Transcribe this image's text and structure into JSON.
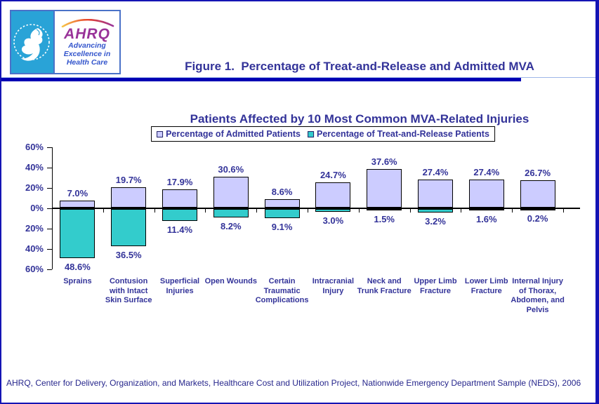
{
  "header": {
    "title_line1": "Figure 1.  Percentage of Treat-and-Release and Admitted MVA",
    "title_line2": "Patients Affected by 10 Most Common MVA-Related Injuries",
    "logo": {
      "ahrq_text": "AHRQ",
      "tagline_line1": "Advancing",
      "tagline_line2": "Excellence in",
      "tagline_line3": "Health Care"
    }
  },
  "footer": {
    "source": "AHRQ, Center for Delivery, Organization, and Markets, Healthcare Cost and Utilization Project, Nationwide Emergency Department Sample (NEDS), 2006"
  },
  "colors": {
    "admitted_bar": "#CCCCFF",
    "treat_release_bar": "#33CCCC",
    "text_navy": "#333399",
    "divider_blue": "#0000B4",
    "logo_cyan": "#29A3D7",
    "ahrq_purple": "#993399"
  },
  "chart_data": {
    "type": "bar",
    "orientation": "diverging-vertical",
    "title": "Percentage of Treat-and-Release and Admitted MVA Patients Affected by 10 Most Common MVA-Related Injuries",
    "categories": [
      "Sprains",
      "Contusion with Intact Skin Surface",
      "Superficial Injuries",
      "Open Wounds",
      "Certain Traumatic Complications",
      "Intracranial Injury",
      "Neck and Trunk Fracture",
      "Upper Limb Fracture",
      "Lower Limb Fracture",
      "Internal Injury of Thorax, Abdomen, and Pelvis"
    ],
    "category_label_lines": [
      [
        "Sprains"
      ],
      [
        "Contusion",
        "with Intact",
        "Skin Surface"
      ],
      [
        "Superficial",
        "Injuries"
      ],
      [
        "Open Wounds"
      ],
      [
        "Certain",
        "Traumatic",
        "Complications"
      ],
      [
        "Intracranial",
        "Injury"
      ],
      [
        "Neck and",
        "Trunk Fracture"
      ],
      [
        "Upper Limb",
        "Fracture"
      ],
      [
        "Lower Limb",
        "Fracture"
      ],
      [
        "Internal Injury",
        "of Thorax,",
        "Abdomen, and",
        "Pelvis"
      ]
    ],
    "series": [
      {
        "name": "Percentage of Admitted Patients",
        "direction": "up",
        "color": "#CCCCFF",
        "values": [
          7.0,
          19.7,
          17.9,
          30.6,
          8.6,
          24.7,
          37.6,
          27.4,
          27.4,
          26.7
        ]
      },
      {
        "name": "Percentage of Treat-and-Release Patients",
        "direction": "down",
        "color": "#33CCCC",
        "values": [
          48.6,
          36.5,
          11.4,
          8.2,
          9.1,
          3.0,
          1.5,
          3.2,
          1.6,
          0.2
        ]
      }
    ],
    "ylim": [
      -60,
      60
    ],
    "y_ticks": [
      60,
      40,
      20,
      0,
      -20,
      -40,
      -60
    ],
    "y_tick_suffix": "%",
    "grid": false,
    "legend_position": "top-center",
    "value_labels": "X.X%"
  }
}
